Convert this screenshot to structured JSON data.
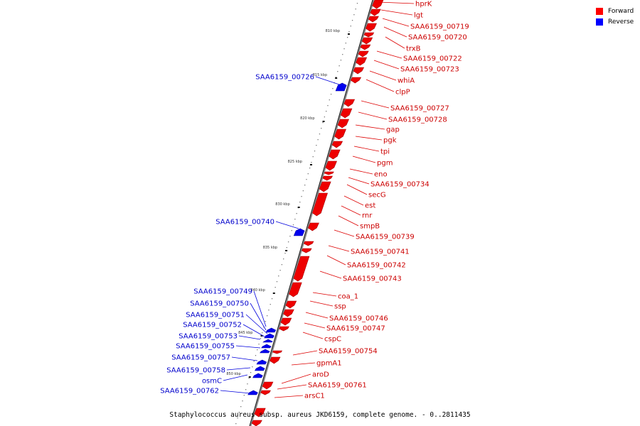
{
  "legend": {
    "forward_label": "Forward",
    "reverse_label": "Reverse",
    "forward_color": "#ff0000",
    "reverse_color": "#0000ff"
  },
  "caption": "Staphylococcus aureus subsp. aureus JKD6159, complete genome. - 0..2811435",
  "scale_ticks": [
    "810 kbp",
    "815 kbp",
    "820 kbp",
    "825 kbp",
    "830 kbp",
    "835 kbp",
    "840 kbp",
    "845 kbp",
    "850 kbp"
  ],
  "forward_genes": [
    "hprK",
    "lgt",
    "SAA6159_00719",
    "SAA6159_00720",
    "trxB",
    "SAA6159_00722",
    "SAA6159_00723",
    "whiA",
    "clpP",
    "SAA6159_00727",
    "SAA6159_00728",
    "gap",
    "pgk",
    "tpi",
    "pgm",
    "eno",
    "SAA6159_00734",
    "secG",
    "est",
    "rnr",
    "smpB",
    "SAA6159_00739",
    "SAA6159_00741",
    "SAA6159_00742",
    "SAA6159_00743",
    "coa_1",
    "ssp",
    "SAA6159_00746",
    "SAA6159_00747",
    "cspC",
    "SAA6159_00754",
    "gpmA1",
    "aroD",
    "SAA6159_00761",
    "arsC1"
  ],
  "reverse_genes": [
    "SAA6159_00726",
    "SAA6159_00740",
    "SAA6159_00749",
    "SAA6159_00750",
    "SAA6159_00751",
    "SAA6159_00752",
    "SAA6159_00753",
    "SAA6159_00755",
    "SAA6159_00757",
    "SAA6159_00758",
    "osmC",
    "SAA6159_00762"
  ]
}
